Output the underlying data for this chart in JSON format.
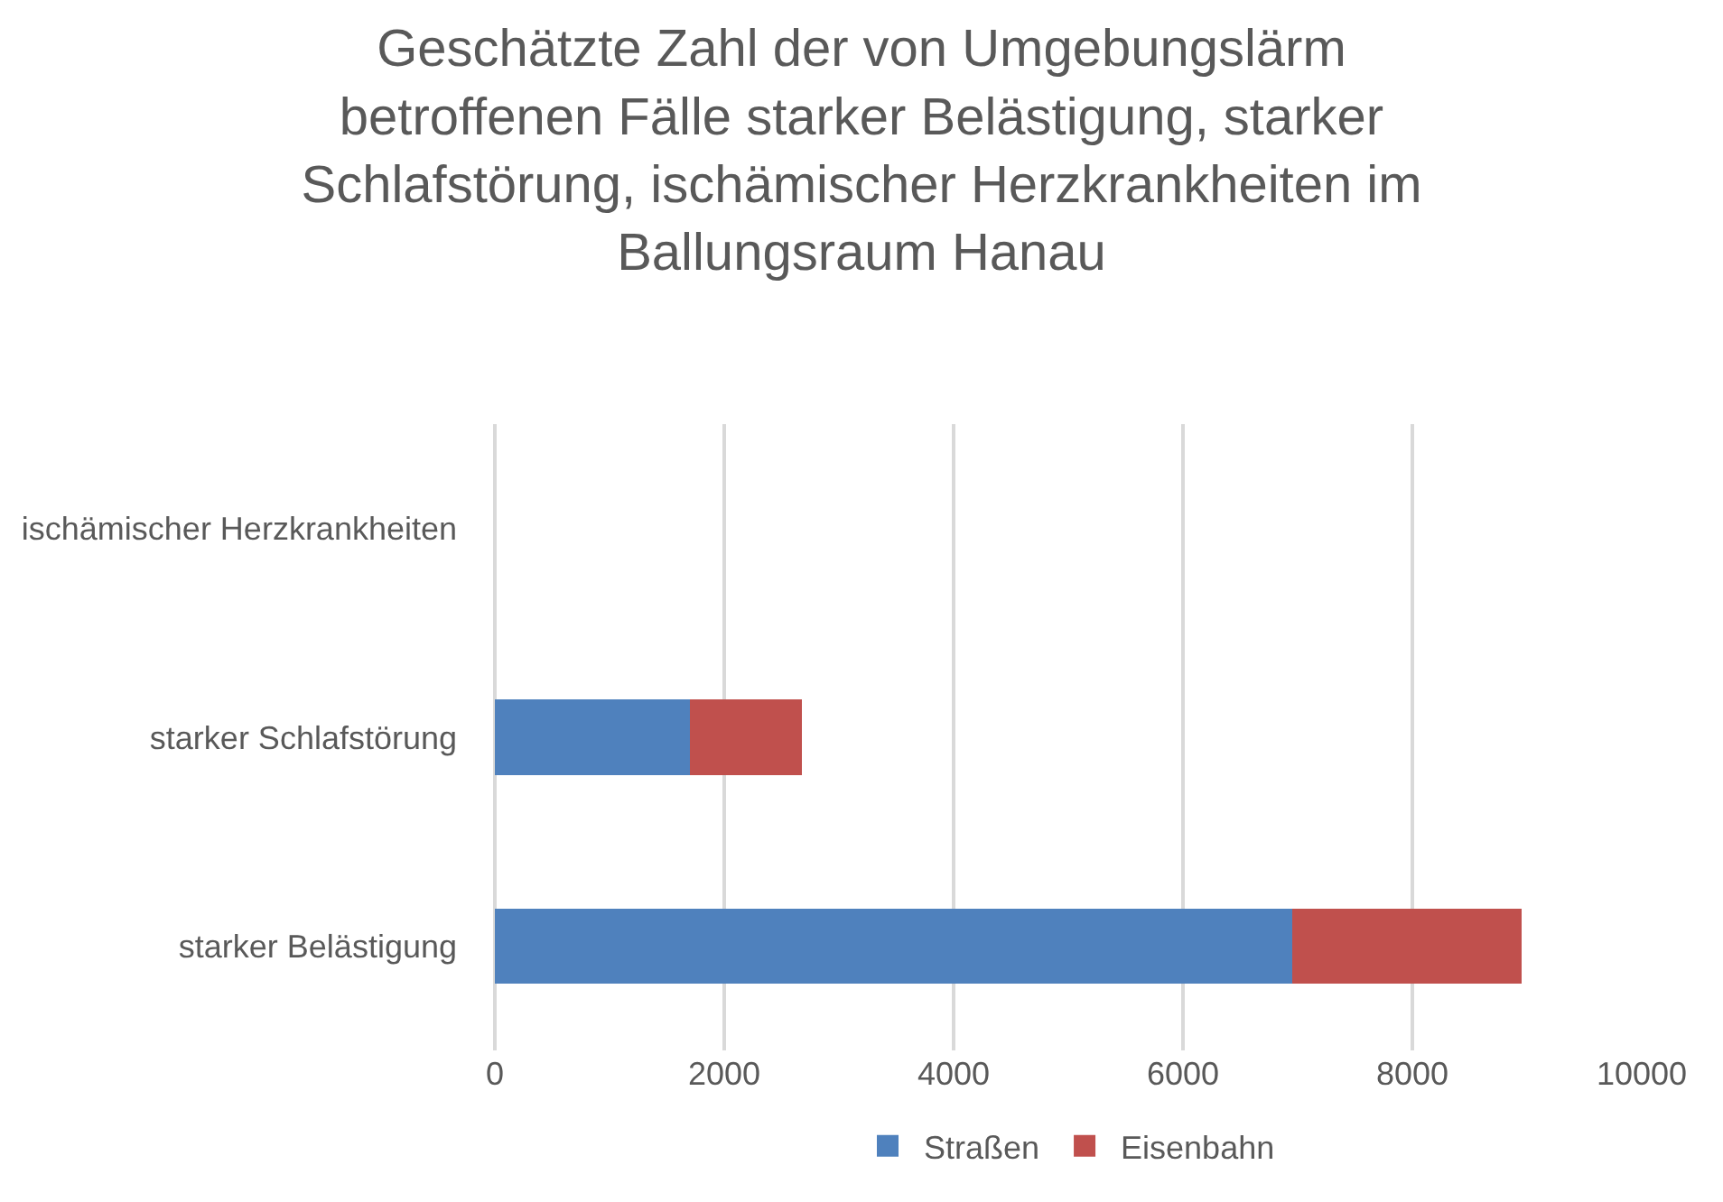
{
  "chart_data": {
    "type": "bar",
    "orientation": "horizontal",
    "stacked": true,
    "title": "Geschätzte Zahl der von Umgebungslärm betroffenen Fälle starker Belästigung, starker Schlafstörung, ischämischer Herzkrankheiten im Ballungsraum Hanau",
    "categories": [
      "ischämischer Herzkrankheiten",
      "starker Schlafstörung",
      "starker Belästigung"
    ],
    "series": [
      {
        "name": "Straßen",
        "color": "#4f81bd",
        "values": [
          0,
          1700,
          6950
        ]
      },
      {
        "name": "Eisenbahn",
        "color": "#c0504d",
        "values": [
          0,
          980,
          2000
        ]
      }
    ],
    "xlim": [
      0,
      10000
    ],
    "xticks": [
      0,
      2000,
      4000,
      6000,
      8000,
      10000
    ],
    "grid": "x",
    "legend": "bottom"
  }
}
